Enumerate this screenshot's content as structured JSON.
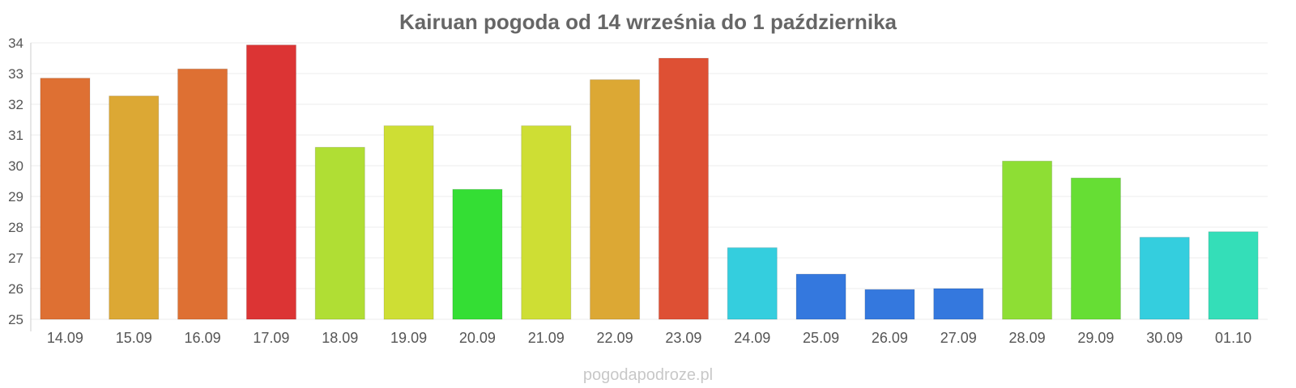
{
  "chart_data": {
    "type": "bar",
    "title": "Kairuan pogoda od 14 września do 1 października",
    "xlabel": "",
    "ylabel": "",
    "ylim": [
      25,
      34
    ],
    "yticks": [
      25,
      26,
      27,
      28,
      29,
      30,
      31,
      32,
      33,
      34
    ],
    "grid": true,
    "categories": [
      "14.09",
      "15.09",
      "16.09",
      "17.09",
      "18.09",
      "19.09",
      "20.09",
      "21.09",
      "22.09",
      "23.09",
      "24.09",
      "25.09",
      "26.09",
      "27.09",
      "28.09",
      "29.09",
      "30.09",
      "01.10"
    ],
    "values": [
      32.85,
      32.27,
      33.15,
      33.93,
      30.6,
      31.3,
      29.23,
      31.3,
      32.8,
      33.5,
      27.33,
      26.47,
      25.97,
      26.0,
      30.15,
      29.6,
      27.67,
      27.85
    ],
    "colors": [
      "#de7033",
      "#dca834",
      "#de7033",
      "#dc3434",
      "#b0de34",
      "#cede34",
      "#34de34",
      "#cede34",
      "#dca834",
      "#de5034",
      "#34cede",
      "#3478de",
      "#3478de",
      "#3478de",
      "#8ede34",
      "#66de34",
      "#34cede",
      "#34deb8"
    ]
  },
  "watermark": "pogodapodroze.pl"
}
